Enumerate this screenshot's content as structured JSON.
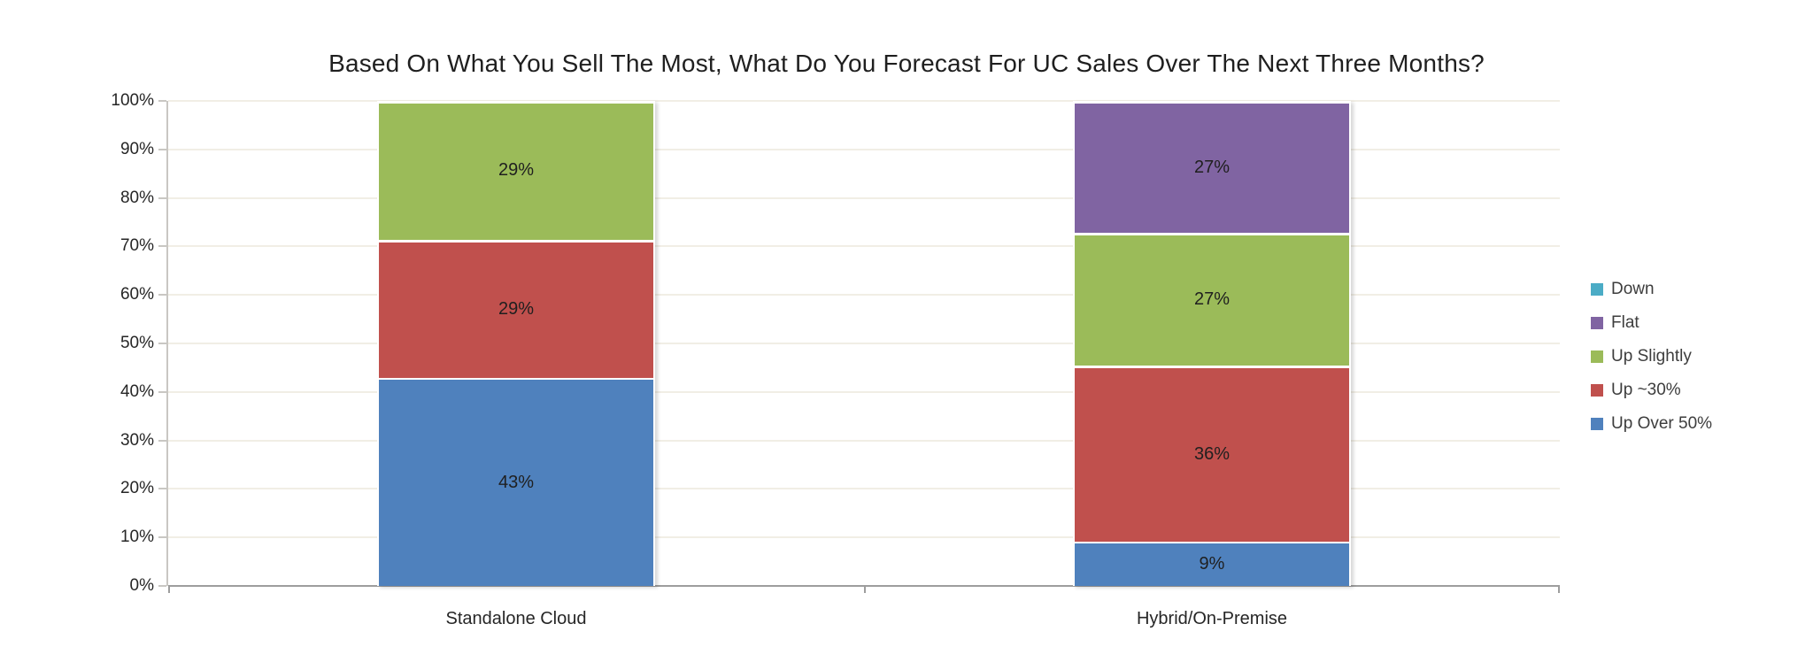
{
  "chart_data": {
    "type": "bar",
    "stacked": true,
    "orientation": "vertical",
    "title": "Based On What You Sell The Most, What Do You Forecast For UC Sales Over The Next Three Months?",
    "categories": [
      "Standalone Cloud",
      "Hybrid/On-Premise"
    ],
    "series": [
      {
        "name": "Up Over 50%",
        "color": "#4F81BD",
        "values": [
          43,
          9
        ],
        "labels": [
          "43%",
          "9%"
        ],
        "exact": [
          42.857,
          9.091
        ]
      },
      {
        "name": "Up ~30%",
        "color": "#C0504D",
        "values": [
          29,
          36
        ],
        "labels": [
          "29%",
          "36%"
        ],
        "exact": [
          28.571,
          36.364
        ]
      },
      {
        "name": "Up Slightly",
        "color": "#9BBB59",
        "values": [
          29,
          27
        ],
        "labels": [
          "29%",
          "27%"
        ],
        "exact": [
          28.571,
          27.273
        ]
      },
      {
        "name": "Flat",
        "color": "#8064A2",
        "values": [
          0,
          27
        ],
        "labels": [
          null,
          "27%"
        ],
        "exact": [
          0,
          27.273
        ]
      },
      {
        "name": "Down",
        "color": "#4BACC6",
        "values": [
          0,
          0
        ],
        "labels": [
          null,
          null
        ],
        "exact": [
          0,
          0
        ]
      }
    ],
    "legend": {
      "position": "right",
      "entries": [
        "Down",
        "Flat",
        "Up Slightly",
        "Up ~30%",
        "Up Over 50%"
      ]
    },
    "y_axis": {
      "min": 0,
      "max": 100,
      "tick_step": 10,
      "tick_labels": [
        "0%",
        "10%",
        "20%",
        "30%",
        "40%",
        "50%",
        "60%",
        "70%",
        "80%",
        "90%",
        "100%"
      ],
      "grid": true
    },
    "colors": {
      "grid": "#f1eee5",
      "y_axis_line": "#c9c7c3",
      "x_axis_line": "#9d9d9d",
      "title_text": "#1f1f1f",
      "axis_text": "#262626",
      "data_label_text": "#1f1f1f"
    }
  }
}
